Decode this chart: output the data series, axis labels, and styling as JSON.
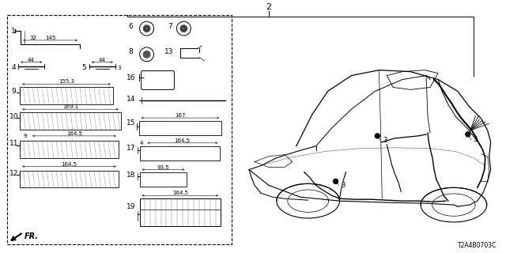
{
  "bg_color": "#ffffff",
  "diagram_color": "#000000",
  "gray_color": "#666666",
  "fig_width": 6.4,
  "fig_height": 3.2,
  "dpi": 100,
  "diagram_code": "T2A4B0703C"
}
